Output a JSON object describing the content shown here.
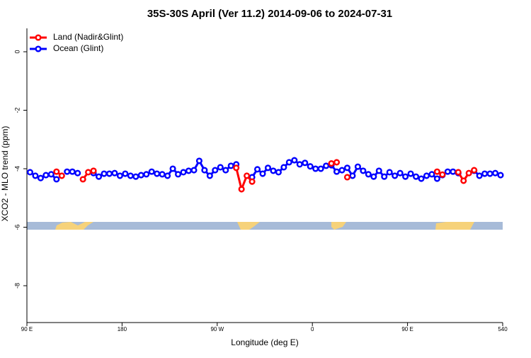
{
  "chart_data": {
    "type": "line",
    "title": "35S-30S April (Ver 11.2)   2014-09-06 to 2024-07-31",
    "x_label": "Longitude (deg E)",
    "y_label": "XCO2 - MLO trend (ppm)",
    "x": [
      93,
      98,
      103,
      108,
      113,
      118,
      123,
      128,
      133,
      138,
      143,
      148,
      153,
      158,
      163,
      168,
      173,
      178,
      183,
      188,
      193,
      198,
      203,
      208,
      213,
      218,
      223,
      228,
      233,
      238,
      243,
      248,
      253,
      258,
      263,
      268,
      273,
      278,
      283,
      288,
      293,
      298,
      303,
      308,
      313,
      318,
      323,
      328,
      333,
      338,
      343,
      348,
      353,
      358,
      363,
      368,
      373,
      378,
      383,
      388,
      393,
      398,
      403,
      408,
      413,
      418,
      423,
      428,
      433,
      438,
      443,
      448,
      453,
      458,
      463,
      468,
      473,
      478,
      483,
      488,
      493,
      498,
      503,
      508,
      513,
      518,
      523,
      528,
      533,
      538
    ],
    "series": [
      {
        "name": "Ocean (Glint)",
        "color": "#0000ff",
        "values": [
          -4.12,
          -4.24,
          -4.32,
          -4.22,
          -4.19,
          -4.36,
          null,
          -4.1,
          -4.1,
          -4.15,
          null,
          null,
          -4.15,
          -4.27,
          -4.17,
          -4.17,
          -4.15,
          -4.24,
          -4.17,
          -4.24,
          -4.27,
          -4.22,
          -4.19,
          -4.1,
          -4.17,
          -4.19,
          -4.24,
          -4.0,
          -4.19,
          -4.12,
          -4.07,
          -4.05,
          -3.73,
          -4.05,
          -4.24,
          -4.05,
          -3.95,
          -4.05,
          -3.9,
          -3.85,
          null,
          null,
          -4.29,
          -4.02,
          -4.17,
          -3.97,
          -4.07,
          -4.12,
          -3.95,
          -3.78,
          -3.71,
          -3.85,
          -3.8,
          -3.92,
          -4.0,
          -4.0,
          -3.9,
          -3.88,
          -4.1,
          -4.05,
          -3.97,
          -4.24,
          -3.93,
          -4.07,
          -4.19,
          -4.27,
          -4.07,
          -4.27,
          -4.12,
          -4.24,
          -4.15,
          -4.27,
          -4.17,
          -4.27,
          -4.34,
          -4.24,
          -4.19,
          -4.34,
          -4.22,
          -4.1,
          -4.1,
          -4.15,
          null,
          null,
          -4.07,
          -4.24,
          -4.17,
          -4.17,
          -4.15,
          -4.22
        ]
      },
      {
        "name": "Land (Nadir&Glint)",
        "color": "#ff0000",
        "values": [
          null,
          null,
          null,
          null,
          null,
          -4.1,
          -4.24,
          null,
          null,
          null,
          -4.36,
          -4.12,
          -4.07,
          null,
          null,
          null,
          null,
          null,
          null,
          null,
          null,
          null,
          null,
          null,
          null,
          null,
          null,
          null,
          null,
          null,
          null,
          null,
          null,
          null,
          null,
          null,
          null,
          null,
          null,
          -3.97,
          -4.7,
          -4.24,
          -4.44,
          null,
          null,
          null,
          null,
          null,
          null,
          null,
          null,
          null,
          null,
          null,
          null,
          null,
          null,
          -3.82,
          -3.78,
          null,
          -4.29,
          null,
          null,
          null,
          null,
          null,
          null,
          null,
          null,
          null,
          null,
          null,
          null,
          null,
          null,
          null,
          null,
          -4.1,
          -4.2,
          null,
          null,
          -4.12,
          -4.41,
          -4.15,
          -4.05,
          null,
          null,
          null,
          null,
          null
        ]
      }
    ],
    "xlim": [
      90,
      540
    ],
    "xticks": [
      {
        "value": 90,
        "label": "90 E"
      },
      180,
      {
        "value": 270,
        "label": "90 W"
      },
      {
        "value": 360,
        "label": "0"
      },
      {
        "value": 450,
        "label": "90 E"
      },
      540
    ],
    "ylim": [
      -9.26,
      0.8
    ],
    "yticks": [
      0,
      -2,
      -4,
      -6,
      -8
    ],
    "legend": "top-left"
  }
}
